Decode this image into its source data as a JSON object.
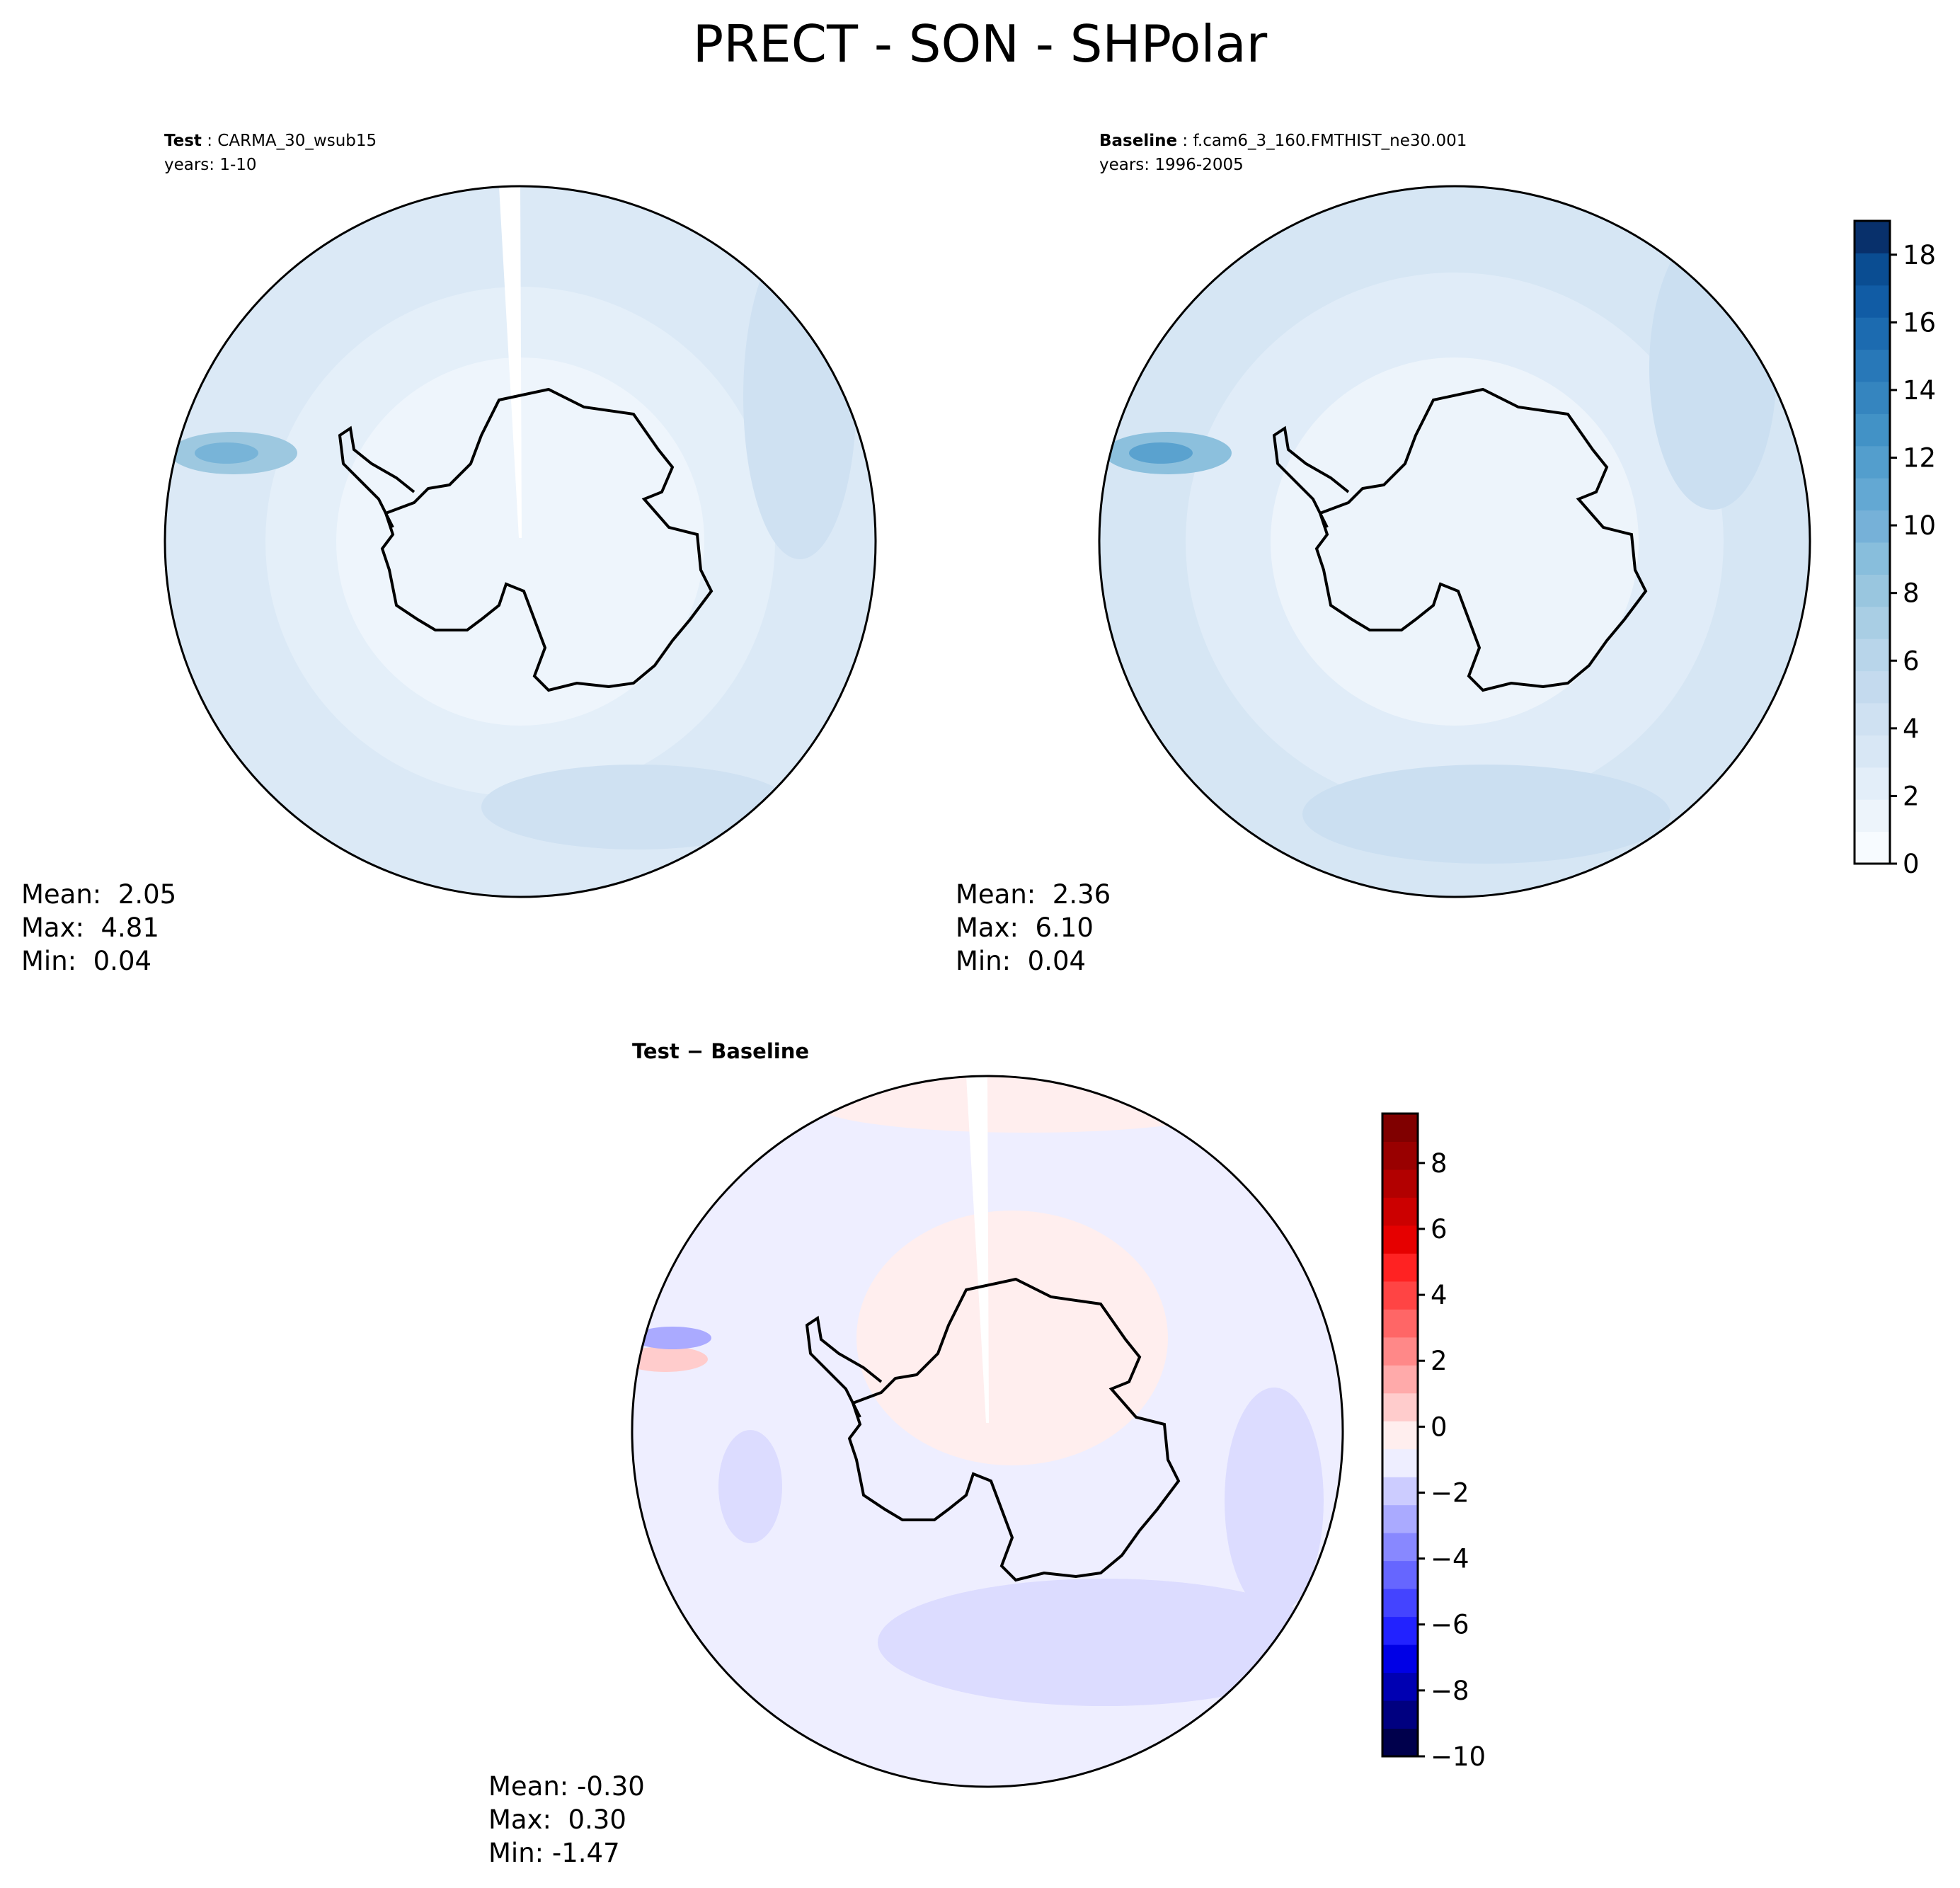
{
  "figure": {
    "title": "PRECT - SON - SHPolar"
  },
  "panels": {
    "test": {
      "label": "Test",
      "case": "CARMA_30_wsub15",
      "years": "years: 1-10",
      "mean": "Mean:  2.05",
      "max": "Max:  4.81",
      "min": "Min:  0.04"
    },
    "baseline": {
      "label": "Baseline",
      "case": "f.cam6_3_160.FMTHIST_ne30.001",
      "years": "years: 1996-2005",
      "mean": "Mean:  2.36",
      "max": "Max:  6.10",
      "min": "Min:  0.04"
    },
    "diff": {
      "title": "Test − Baseline",
      "mean": "Mean: -0.30",
      "max": "Max:  0.30",
      "min": "Min: -1.47"
    }
  },
  "chart_data": [
    {
      "type": "heatmap",
      "panel": "Test",
      "projection": "south polar stereographic",
      "colormap": "Blues",
      "colorbar": "shared with Baseline",
      "summary": {
        "mean": 2.05,
        "max": 4.81,
        "min": 0.04
      }
    },
    {
      "type": "heatmap",
      "panel": "Baseline",
      "projection": "south polar stereographic",
      "colormap": "Blues",
      "colorbar": {
        "range": [
          0,
          19
        ],
        "ticks": [
          "0",
          "2",
          "4",
          "6",
          "8",
          "10",
          "12",
          "14",
          "16",
          "18"
        ],
        "levels": [
          0,
          1,
          2,
          3,
          4,
          5,
          6,
          7,
          8,
          9,
          10,
          11,
          12,
          13,
          14,
          15,
          16,
          17,
          18,
          19
        ]
      },
      "summary": {
        "mean": 2.36,
        "max": 6.1,
        "min": 0.04
      }
    },
    {
      "type": "heatmap",
      "panel": "Test − Baseline",
      "projection": "south polar stereographic",
      "colormap": "seismic",
      "colorbar": {
        "range": [
          -10,
          9.5
        ],
        "ticks": [
          "8",
          "6",
          "4",
          "2",
          "0",
          "−2",
          "−4",
          "−6",
          "−8",
          "−10"
        ],
        "tick_values": [
          8,
          6,
          4,
          2,
          0,
          -2,
          -4,
          -6,
          -8,
          -10
        ]
      },
      "summary": {
        "mean": -0.3,
        "max": 0.3,
        "min": -1.47
      }
    }
  ],
  "colors": {
    "blues": [
      "#f7fbff",
      "#edf4fb",
      "#e3eef9",
      "#d8e7f5",
      "#cfe1f2",
      "#c4daee",
      "#b8d5ea",
      "#a9cee4",
      "#99c6df",
      "#88bedc",
      "#76b1d8",
      "#63a8d3",
      "#539ecd",
      "#4292c6",
      "#3585bf",
      "#2878b8",
      "#1c6bb0",
      "#115ca5",
      "#0a4d92",
      "#08306b"
    ],
    "seismic": [
      "#00004c",
      "#000080",
      "#0000b2",
      "#0000e6",
      "#2222ff",
      "#4444ff",
      "#6666ff",
      "#8888ff",
      "#aaaaff",
      "#ccccff",
      "#eeeeff",
      "#ffeeee",
      "#ffcccc",
      "#ffaaaa",
      "#ff8888",
      "#ff6666",
      "#ff4444",
      "#ff2222",
      "#e60000",
      "#cc0000",
      "#b20000",
      "#990000",
      "#800000"
    ],
    "coastline": "#000000"
  }
}
